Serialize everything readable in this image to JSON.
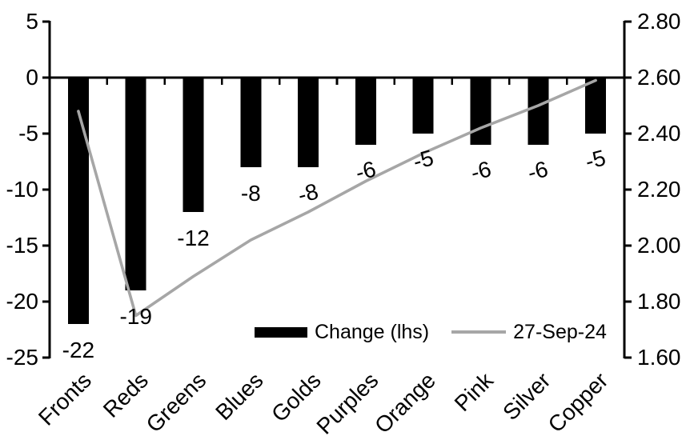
{
  "chart_data": {
    "type": "bar",
    "subtype": "dual-axis bar+line combo",
    "title": "",
    "categories": [
      "Fronts",
      "Reds",
      "Greens",
      "Blues",
      "Golds",
      "Purples",
      "Orange",
      "Pink",
      "Silver",
      "Copper"
    ],
    "series": [
      {
        "name": "Change (lhs)",
        "type": "bar",
        "axis": "left",
        "values": [
          -22,
          -19,
          -12,
          -8,
          -8,
          -6,
          -5,
          -6,
          -6,
          -5
        ],
        "data_labels": [
          {
            "text": "-22",
            "rotated": false
          },
          {
            "text": "-19",
            "rotated": false
          },
          {
            "text": "-12",
            "rotated": false
          },
          {
            "text": "-8",
            "rotated": false
          },
          {
            "text": "-8",
            "rotated": true
          },
          {
            "text": "-6",
            "rotated": true
          },
          {
            "text": "-5",
            "rotated": true
          },
          {
            "text": "-6",
            "rotated": true
          },
          {
            "text": "-6",
            "rotated": true
          },
          {
            "text": "-5",
            "rotated": true
          }
        ]
      },
      {
        "name": "27-Sep-24",
        "type": "line",
        "axis": "right",
        "values": [
          2.48,
          1.75,
          1.89,
          2.02,
          2.12,
          2.23,
          2.33,
          2.42,
          2.5,
          2.59
        ]
      }
    ],
    "left_axis": {
      "min": -25,
      "max": 5,
      "step": 5,
      "tick_labels": [
        "5",
        "0",
        "-5",
        "-10",
        "-15",
        "-20",
        "-25"
      ]
    },
    "right_axis": {
      "min": 1.6,
      "max": 2.8,
      "step": 0.2,
      "tick_labels": [
        "2.80",
        "2.60",
        "2.40",
        "2.20",
        "2.00",
        "1.80",
        "1.60"
      ]
    },
    "legend": {
      "position": "bottom-inside",
      "items": [
        "Change (lhs)",
        "27-Sep-24"
      ]
    },
    "grid": "off"
  },
  "colors": {
    "bar": "#000000",
    "line": "#a6a6a6",
    "axis": "#000000",
    "text": "#000000",
    "background": "#ffffff"
  }
}
